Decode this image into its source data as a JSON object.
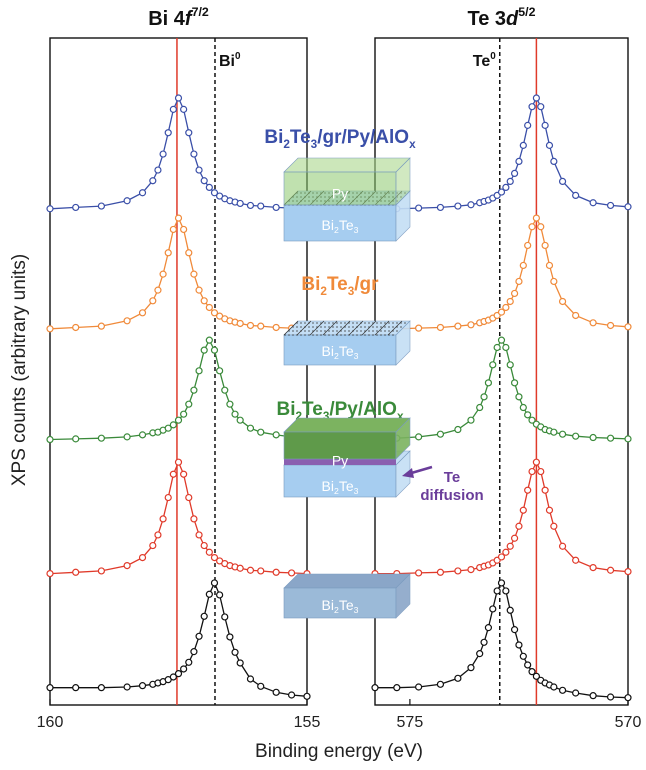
{
  "figure": {
    "xlabel": "Binding energy (eV)",
    "ylabel": "XPS counts (arbitrary units)"
  },
  "chart_data": [
    {
      "type": "line",
      "title": [
        "Bi 4",
        {
          "i": "f"
        },
        {
          "sup": "7/2"
        }
      ],
      "xlim": [
        160,
        155
      ],
      "xticks": [
        160,
        155
      ],
      "ylim": [
        0,
        100
      ],
      "reference_lines": [
        {
          "value": 157.53,
          "color": "#e03a2a",
          "style": "solid"
        },
        {
          "value": 156.79,
          "color": "#111111",
          "style": "dashed",
          "label": [
            "Bi",
            {
              "sup": "0"
            }
          ]
        }
      ],
      "x": [
        160,
        159.5,
        159,
        158.5,
        158.2,
        158,
        157.9,
        157.8,
        157.7,
        157.6,
        157.5,
        157.4,
        157.3,
        157.2,
        157.1,
        157,
        156.9,
        156.8,
        156.7,
        156.6,
        156.5,
        156.4,
        156.3,
        156.1,
        155.9,
        155.6,
        155.3,
        155
      ],
      "series": [
        {
          "color": "#3a4fa8",
          "values": [
            74.4,
            74.6,
            74.8,
            75.6,
            76.8,
            78.6,
            80.2,
            82.6,
            85.8,
            89.3,
            91.0,
            89.3,
            85.8,
            82.6,
            80.2,
            78.6,
            77.6,
            76.8,
            76.3,
            75.9,
            75.6,
            75.4,
            75.2,
            74.9,
            74.8,
            74.6,
            74.5,
            74.4
          ]
        },
        {
          "color": "#f08a3a",
          "values": [
            56.4,
            56.6,
            56.8,
            57.6,
            58.8,
            60.6,
            62.2,
            64.6,
            67.8,
            71.3,
            73.0,
            71.3,
            67.8,
            64.6,
            62.2,
            60.6,
            59.6,
            58.8,
            58.3,
            57.9,
            57.6,
            57.4,
            57.2,
            56.9,
            56.8,
            56.6,
            56.5,
            56.4
          ]
        },
        {
          "color": "#3a8a3a",
          "values": [
            39.8,
            39.9,
            40.0,
            40.2,
            40.5,
            40.8,
            40.9,
            41.2,
            41.5,
            42.0,
            42.7,
            43.6,
            45.1,
            47.2,
            50.1,
            53.2,
            54.7,
            53.2,
            50.1,
            47.2,
            45.1,
            43.6,
            42.7,
            41.5,
            40.9,
            40.5,
            40.2,
            40.1
          ]
        },
        {
          "color": "#e03a2a",
          "values": [
            19.7,
            19.9,
            20.1,
            20.9,
            22.1,
            23.9,
            25.5,
            27.9,
            31.1,
            34.6,
            36.4,
            34.6,
            31.1,
            27.9,
            25.5,
            23.9,
            22.9,
            22.1,
            21.6,
            21.2,
            20.9,
            20.7,
            20.5,
            20.2,
            20.1,
            19.9,
            19.8,
            19.7
          ]
        },
        {
          "color": "#111111",
          "values": [
            2.6,
            2.6,
            2.6,
            2.7,
            2.9,
            3.1,
            3.3,
            3.5,
            3.8,
            4.2,
            4.7,
            5.4,
            6.4,
            8.0,
            10.3,
            13.3,
            16.6,
            18.3,
            16.5,
            13.2,
            10.2,
            7.9,
            6.3,
            3.9,
            2.8,
            1.9,
            1.5,
            1.3
          ]
        }
      ]
    },
    {
      "type": "line",
      "title": [
        "Te 3",
        {
          "i": "d"
        },
        {
          "sup": "5/2"
        }
      ],
      "xlim": [
        575.8,
        570
      ],
      "xticks": [
        575,
        570
      ],
      "ylim": [
        0,
        100
      ],
      "reference_lines": [
        {
          "value": 572.1,
          "color": "#e03a2a",
          "style": "solid"
        },
        {
          "value": 572.94,
          "color": "#111111",
          "style": "dashed",
          "label": [
            "Te",
            {
              "sup": "0"
            }
          ]
        }
      ],
      "x": [
        575.8,
        575.3,
        574.8,
        574.3,
        573.9,
        573.6,
        573.4,
        573.3,
        573.2,
        573.1,
        573,
        572.9,
        572.8,
        572.7,
        572.6,
        572.5,
        572.4,
        572.3,
        572.2,
        572.1,
        572,
        571.9,
        571.8,
        571.7,
        571.5,
        571.2,
        570.8,
        570.4,
        570
      ],
      "series": [
        {
          "color": "#3a4fa8",
          "values": [
            74.4,
            74.4,
            74.5,
            74.6,
            74.8,
            75.0,
            75.3,
            75.5,
            75.7,
            76.0,
            76.4,
            76.9,
            77.6,
            78.5,
            79.7,
            81.5,
            83.9,
            86.9,
            89.7,
            91.0,
            89.7,
            86.9,
            83.9,
            81.5,
            78.5,
            76.4,
            75.3,
            74.9,
            74.7
          ]
        },
        {
          "color": "#f08a3a",
          "values": [
            56.4,
            56.4,
            56.5,
            56.6,
            56.8,
            57.0,
            57.3,
            57.5,
            57.7,
            58.0,
            58.4,
            58.9,
            59.6,
            60.5,
            61.7,
            63.5,
            65.9,
            68.9,
            71.7,
            73.0,
            71.7,
            68.9,
            65.9,
            63.5,
            60.5,
            58.4,
            57.3,
            56.9,
            56.7
          ]
        },
        {
          "color": "#3a8a3a",
          "values": [
            39.9,
            40.0,
            40.2,
            40.6,
            41.3,
            42.7,
            44.6,
            46.2,
            48.3,
            51.0,
            53.6,
            54.7,
            53.6,
            51.0,
            48.3,
            46.2,
            44.6,
            43.5,
            42.7,
            42.1,
            41.7,
            41.3,
            41.1,
            40.9,
            40.6,
            40.3,
            40.1,
            40.0,
            39.9
          ]
        },
        {
          "color": "#e03a2a",
          "values": [
            19.7,
            19.7,
            19.8,
            19.9,
            20.1,
            20.3,
            20.6,
            20.8,
            21.0,
            21.3,
            21.7,
            22.2,
            22.9,
            23.8,
            25.0,
            26.8,
            29.2,
            32.2,
            35.0,
            36.4,
            35.0,
            32.2,
            29.2,
            26.8,
            23.8,
            21.7,
            20.6,
            20.2,
            20.0
          ]
        },
        {
          "color": "#111111",
          "values": [
            2.6,
            2.6,
            2.7,
            3.1,
            4.0,
            5.6,
            7.7,
            9.4,
            11.6,
            14.4,
            17.1,
            18.3,
            17.1,
            14.2,
            11.3,
            9.0,
            7.3,
            6.0,
            5.0,
            4.3,
            3.7,
            3.3,
            3.0,
            2.7,
            2.2,
            1.8,
            1.4,
            1.2,
            1.1
          ]
        }
      ]
    }
  ],
  "schematic": {
    "samples": [
      {
        "color": "#3a4fa8",
        "label": [
          "Bi",
          {
            "sub": "2"
          },
          "Te",
          {
            "sub": "3"
          },
          "/gr/Py/AlO",
          {
            "sub": "x"
          }
        ]
      },
      {
        "color": "#f08a3a",
        "label": [
          "Bi",
          {
            "sub": "2"
          },
          "Te",
          {
            "sub": "3"
          },
          "/gr"
        ]
      },
      {
        "color": "#3a8a3a",
        "label": [
          "Bi",
          {
            "sub": "2"
          },
          "Te",
          {
            "sub": "3"
          },
          "/Py/AlO",
          {
            "sub": "x"
          }
        ]
      },
      {
        "color": "#e03a2a",
        "label": [
          "Bi",
          {
            "sub": "2"
          },
          "Te",
          {
            "sub": "3"
          }
        ]
      }
    ],
    "substrate": [
      "Bi",
      {
        "sub": "2"
      },
      "Te",
      {
        "sub": "3"
      }
    ],
    "py": "Py",
    "diffusion": [
      "Te",
      "diffusion"
    ]
  }
}
